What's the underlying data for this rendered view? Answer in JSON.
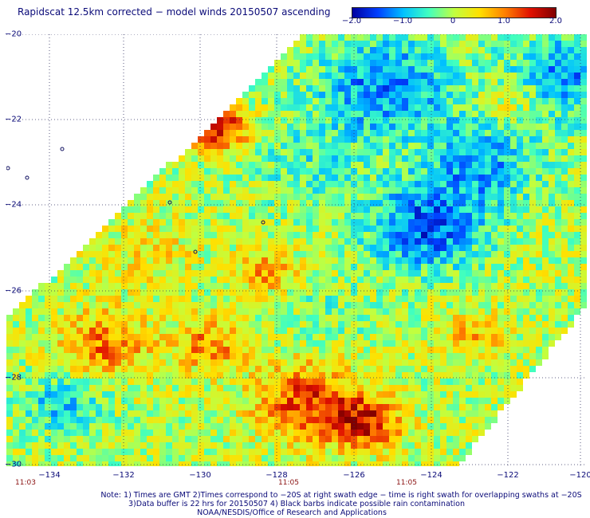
{
  "title": "Rapidscat 12.5km corrected − model winds 20150507 ascending",
  "colorbar": {
    "min": -2.0,
    "max": 2.0,
    "ticks": [
      "−2.0",
      "−1.0",
      "0",
      "1.0",
      "2.0"
    ],
    "colors": [
      "#0000a0",
      "#0040ff",
      "#00c0ff",
      "#40ffc0",
      "#c0ff40",
      "#ffe000",
      "#ff8000",
      "#e01000",
      "#800000"
    ]
  },
  "map": {
    "lat_range": [
      -30,
      -20
    ],
    "lon_range": [
      -135,
      -120
    ],
    "lat_labels": [
      "−20",
      "−22",
      "−24",
      "−26",
      "−28",
      "−30"
    ],
    "lon_labels": [
      "−134",
      "−132",
      "−130",
      "−128",
      "−126",
      "−124",
      "−122",
      "−120"
    ],
    "time_labels": [
      "11:03",
      "11:05",
      "11:05"
    ],
    "grid_color": "#303060"
  },
  "notes": [
    "Note: 1) Times are GMT 2)Times correspond to −20S at right swath edge − time is right swath for overlapping swaths at −20S",
    "3)Data buffer is 22 hrs for 20150507 4) Black barbs indicate possible rain contamination",
    "NOAA/NESDIS/Office of Research and Applications"
  ]
}
